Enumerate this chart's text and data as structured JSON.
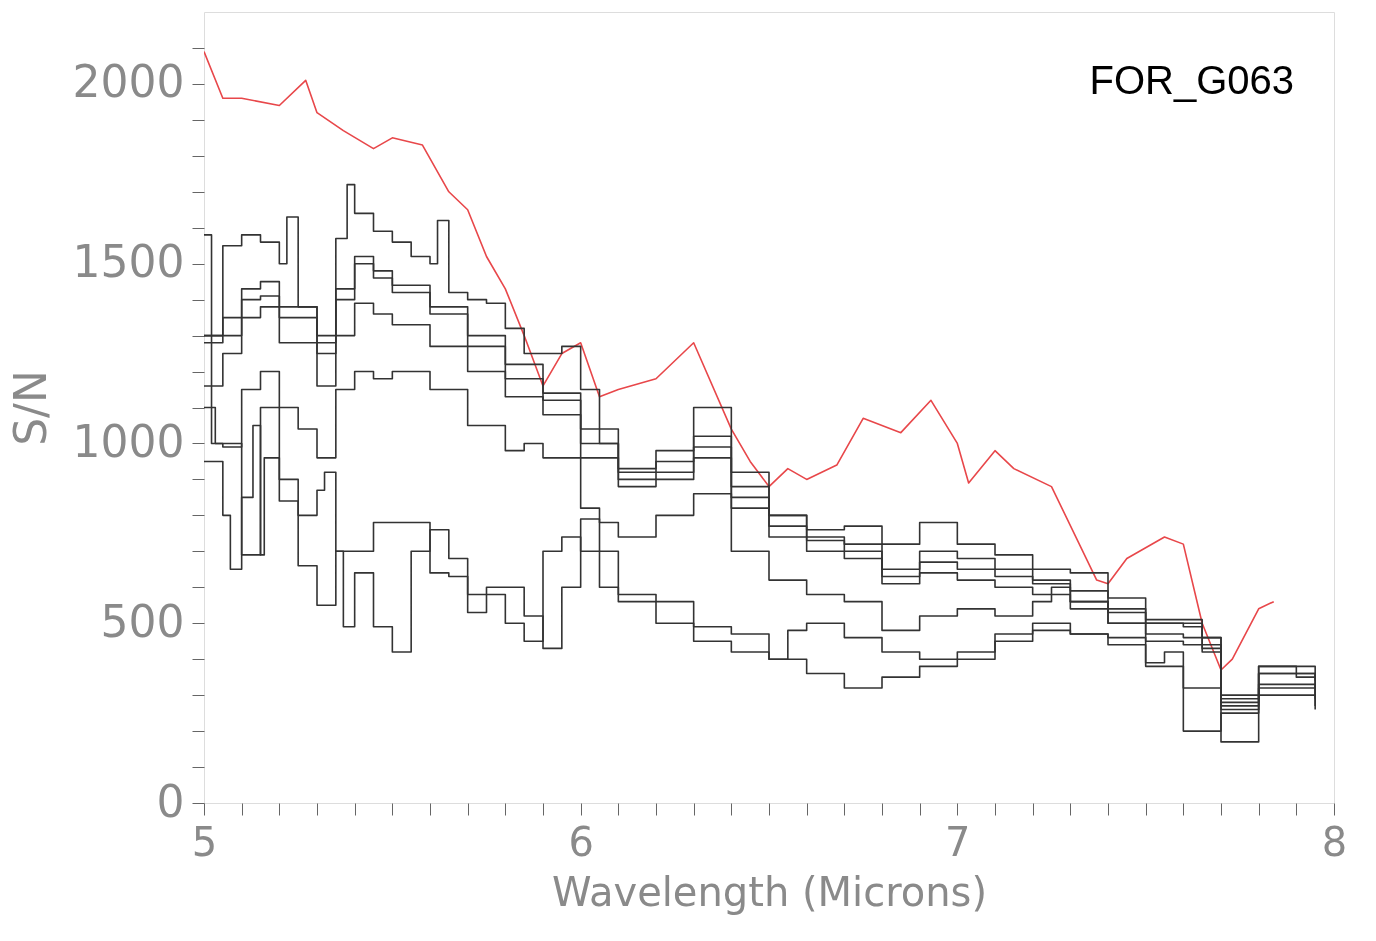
{
  "chart_data": {
    "type": "step",
    "xlabel": "Wavelength (Microns)",
    "ylabel": "S/N",
    "annotations": [
      "FOR_G063"
    ],
    "xlim": [
      5,
      8
    ],
    "ylim": [
      0,
      2200
    ],
    "xticks": [
      5,
      {
        "value": 5.1,
        "label": null
      },
      {
        "value": 5.2,
        "label": null
      },
      {
        "value": 5.3,
        "label": null
      },
      {
        "value": 5.4,
        "label": null
      },
      {
        "value": 5.5,
        "label": null
      },
      {
        "value": 5.6,
        "label": null
      },
      {
        "value": 5.7,
        "label": null
      },
      {
        "value": 5.8,
        "label": null
      },
      {
        "value": 5.9,
        "label": null
      },
      6,
      {
        "value": 6.1,
        "label": null
      },
      {
        "value": 6.2,
        "label": null
      },
      {
        "value": 6.3,
        "label": null
      },
      {
        "value": 6.4,
        "label": null
      },
      {
        "value": 6.5,
        "label": null
      },
      {
        "value": 6.6,
        "label": null
      },
      {
        "value": 6.7,
        "label": null
      },
      {
        "value": 6.8,
        "label": null
      },
      {
        "value": 6.9,
        "label": null
      },
      7,
      {
        "value": 7.1,
        "label": null
      },
      {
        "value": 7.2,
        "label": null
      },
      {
        "value": 7.3,
        "label": null
      },
      {
        "value": 7.4,
        "label": null
      },
      {
        "value": 7.5,
        "label": null
      },
      {
        "value": 7.6,
        "label": null
      },
      {
        "value": 7.7,
        "label": null
      },
      {
        "value": 7.8,
        "label": null
      },
      {
        "value": 7.9,
        "label": null
      },
      8
    ],
    "yticks": [
      0,
      {
        "value": 100,
        "label": null
      },
      {
        "value": 200,
        "label": null
      },
      {
        "value": 300,
        "label": null
      },
      {
        "value": 400,
        "label": null
      },
      500,
      {
        "value": 600,
        "label": null
      },
      {
        "value": 700,
        "label": null
      },
      {
        "value": 800,
        "label": null
      },
      {
        "value": 900,
        "label": null
      },
      1000,
      {
        "value": 1100,
        "label": null
      },
      {
        "value": 1200,
        "label": null
      },
      {
        "value": 1300,
        "label": null
      },
      {
        "value": 1400,
        "label": null
      },
      1500,
      {
        "value": 1600,
        "label": null
      },
      {
        "value": 1700,
        "label": null
      },
      {
        "value": 1800,
        "label": null
      },
      {
        "value": 1900,
        "label": null
      },
      2000,
      {
        "value": 2100,
        "label": null
      }
    ],
    "grid": false,
    "marker": "none",
    "series": [
      {
        "type": "line",
        "color": "#e8474a",
        "x": [
          5.0,
          5.05,
          5.1,
          5.2,
          5.27,
          5.3,
          5.37,
          5.45,
          5.5,
          5.58,
          5.65,
          5.7,
          5.75,
          5.8,
          5.85,
          5.9,
          5.95,
          6.0,
          6.05,
          6.1,
          6.2,
          6.3,
          6.4,
          6.45,
          6.5,
          6.55,
          6.6,
          6.68,
          6.75,
          6.85,
          6.93,
          7.0,
          7.03,
          7.1,
          7.15,
          7.25,
          7.37,
          7.4,
          7.45,
          7.55,
          7.6,
          7.65,
          7.7,
          7.73,
          7.8,
          7.84
        ],
        "values": [
          2090,
          1960,
          1960,
          1940,
          2010,
          1920,
          1870,
          1820,
          1850,
          1830,
          1700,
          1650,
          1520,
          1430,
          1300,
          1160,
          1250,
          1280,
          1130,
          1150,
          1180,
          1280,
          1040,
          950,
          880,
          930,
          900,
          940,
          1070,
          1030,
          1120,
          1000,
          890,
          980,
          930,
          880,
          620,
          610,
          680,
          740,
          720,
          500,
          370,
          400,
          540,
          560
        ]
      },
      {
        "color": "#333333",
        "x": [
          5.0,
          5.05,
          5.1,
          5.15,
          5.2,
          5.22,
          5.25,
          5.3,
          5.35,
          5.38,
          5.4,
          5.45,
          5.5,
          5.55,
          5.6,
          5.62,
          5.65,
          5.7,
          5.75,
          5.8,
          5.85,
          5.9,
          5.95,
          6.0,
          6.05,
          6.1,
          6.2,
          6.3,
          6.4,
          6.5,
          6.6,
          6.7,
          6.8,
          6.9,
          7.0,
          7.1,
          7.2,
          7.3,
          7.4,
          7.5,
          7.6,
          7.65,
          7.7,
          7.8,
          7.9,
          7.95
        ],
        "values": [
          1300,
          1550,
          1580,
          1560,
          1500,
          1630,
          1380,
          1280,
          1570,
          1720,
          1640,
          1590,
          1560,
          1520,
          1500,
          1620,
          1420,
          1400,
          1390,
          1320,
          1250,
          1250,
          1270,
          1150,
          1000,
          920,
          980,
          1100,
          920,
          800,
          760,
          770,
          720,
          780,
          720,
          690,
          650,
          640,
          570,
          500,
          500,
          420,
          290,
          380,
          350,
          350
        ]
      },
      {
        "color": "#333333",
        "x": [
          5.0,
          5.05,
          5.1,
          5.15,
          5.2,
          5.3,
          5.35,
          5.4,
          5.45,
          5.5,
          5.6,
          5.7,
          5.8,
          5.9,
          6.0,
          6.1,
          6.2,
          6.3,
          6.4,
          6.5,
          6.6,
          6.7,
          6.8,
          6.9,
          7.0,
          7.1,
          7.2,
          7.3,
          7.4,
          7.5,
          7.6,
          7.65,
          7.7,
          7.8,
          7.95
        ],
        "values": [
          1280,
          1350,
          1430,
          1450,
          1380,
          1300,
          1430,
          1520,
          1480,
          1440,
          1380,
          1300,
          1220,
          1140,
          1040,
          930,
          950,
          1020,
          880,
          800,
          740,
          720,
          650,
          700,
          680,
          650,
          620,
          590,
          540,
          510,
          510,
          460,
          270,
          380,
          340
        ]
      },
      {
        "color": "#333333",
        "x": [
          5.0,
          5.1,
          5.15,
          5.2,
          5.3,
          5.35,
          5.4,
          5.45,
          5.5,
          5.6,
          5.7,
          5.8,
          5.9,
          6.0,
          6.1,
          6.2,
          6.3,
          6.4,
          6.5,
          6.6,
          6.7,
          6.8,
          6.9,
          7.0,
          7.1,
          7.2,
          7.3,
          7.4,
          7.5,
          7.6,
          7.65,
          7.7,
          7.8,
          7.95
        ],
        "values": [
          1300,
          1400,
          1410,
          1350,
          1250,
          1400,
          1500,
          1460,
          1420,
          1360,
          1270,
          1180,
          1120,
          1000,
          900,
          920,
          990,
          850,
          770,
          730,
          700,
          630,
          670,
          650,
          630,
          610,
          560,
          530,
          500,
          490,
          430,
          300,
          360,
          320
        ]
      },
      {
        "color": "#333333",
        "x": [
          5.0,
          5.05,
          5.1,
          5.15,
          5.2,
          5.3,
          5.35,
          5.4,
          5.45,
          5.5,
          5.6,
          5.7,
          5.8,
          5.9,
          6.0,
          6.1,
          6.2,
          6.3,
          6.4,
          6.5,
          6.6,
          6.7,
          6.8,
          6.9,
          7.0,
          7.1,
          7.2,
          7.3,
          7.4,
          7.5,
          7.6,
          7.7,
          7.8,
          7.95
        ],
        "values": [
          1160,
          1250,
          1350,
          1380,
          1280,
          1160,
          1300,
          1390,
          1360,
          1330,
          1270,
          1200,
          1130,
          1080,
          960,
          880,
          900,
          960,
          820,
          740,
          700,
          680,
          610,
          640,
          620,
          600,
          580,
          540,
          500,
          470,
          460,
          260,
          330,
          300
        ]
      },
      {
        "color": "#333333",
        "x": [
          5.0,
          5.03,
          5.05,
          5.1,
          5.15,
          5.2,
          5.25,
          5.3,
          5.35,
          5.4,
          5.45,
          5.5,
          5.6,
          5.7,
          5.8,
          5.85,
          5.9,
          6.0,
          6.05,
          6.1,
          6.2,
          6.3,
          6.4,
          6.5,
          6.6,
          6.7,
          6.8,
          6.9,
          7.0,
          7.1,
          7.2,
          7.25,
          7.3,
          7.4,
          7.5,
          7.6,
          7.7,
          7.8,
          7.95
        ],
        "values": [
          1100,
          1000,
          990,
          1150,
          1200,
          1100,
          1040,
          960,
          1150,
          1200,
          1180,
          1200,
          1150,
          1050,
          980,
          1000,
          960,
          820,
          780,
          740,
          800,
          860,
          700,
          620,
          580,
          560,
          480,
          520,
          540,
          520,
          560,
          600,
          560,
          500,
          450,
          440,
          280,
          360,
          290
        ]
      },
      {
        "color": "#333333",
        "x": [
          5.0,
          5.05,
          5.07,
          5.1,
          5.13,
          5.15,
          5.16,
          5.2,
          5.25,
          5.3,
          5.32,
          5.35,
          5.4,
          5.45,
          5.5,
          5.55,
          5.6,
          5.65,
          5.7,
          5.8,
          5.85,
          5.9,
          5.95,
          6.0,
          6.05,
          6.1,
          6.2,
          6.3,
          6.4,
          6.5,
          6.55,
          6.6,
          6.7,
          6.8,
          6.9,
          7.0,
          7.1,
          7.2,
          7.3,
          7.4,
          7.5,
          7.55,
          7.6,
          7.7,
          7.8,
          7.95
        ],
        "values": [
          950,
          800,
          650,
          850,
          1050,
          690,
          960,
          900,
          800,
          870,
          920,
          700,
          700,
          780,
          780,
          780,
          640,
          630,
          580,
          500,
          450,
          700,
          740,
          700,
          600,
          560,
          500,
          490,
          470,
          400,
          480,
          500,
          460,
          420,
          400,
          420,
          470,
          500,
          470,
          440,
          390,
          420,
          320,
          170,
          320,
          260
        ]
      },
      {
        "color": "#333333",
        "x": [
          5.0,
          5.02,
          5.1,
          5.15,
          5.2,
          5.25,
          5.3,
          5.35,
          5.37,
          5.4,
          5.45,
          5.5,
          5.55,
          5.6,
          5.65,
          5.7,
          5.75,
          5.8,
          5.85,
          5.9,
          5.95,
          6.0,
          6.05,
          6.1,
          6.2,
          6.3,
          6.4,
          6.5,
          6.6,
          6.7,
          6.8,
          6.9,
          7.0,
          7.1,
          7.2,
          7.3,
          7.4,
          7.5,
          7.6,
          7.7,
          7.8,
          7.95
        ],
        "values": [
          1580,
          1000,
          690,
          1100,
          840,
          660,
          550,
          700,
          490,
          640,
          490,
          420,
          700,
          760,
          680,
          530,
          600,
          600,
          520,
          430,
          600,
          790,
          700,
          580,
          560,
          450,
          420,
          400,
          360,
          320,
          350,
          380,
          400,
          450,
          480,
          470,
          460,
          380,
          200,
          250,
          300,
          270
        ]
      }
    ]
  }
}
